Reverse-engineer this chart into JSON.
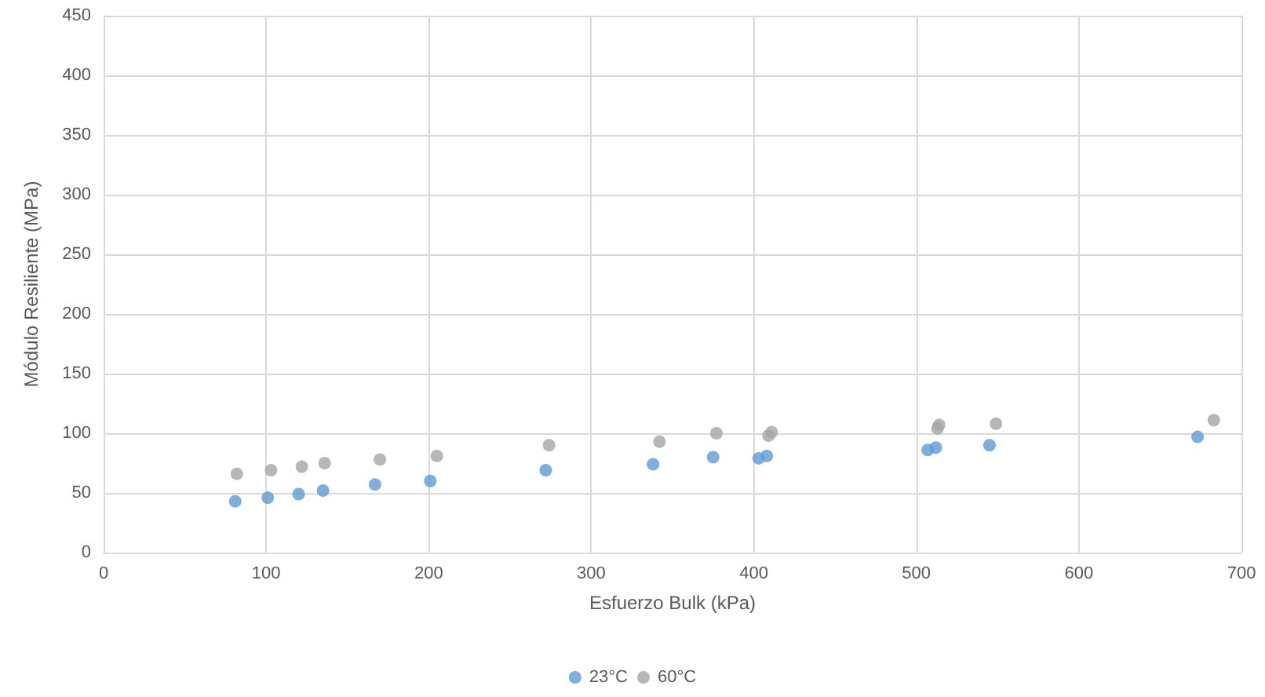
{
  "chart_data": {
    "type": "scatter",
    "xlabel": "Esfuerzo Bulk (kPa)",
    "ylabel": "Módulo Resiliente (MPa)",
    "series": [
      {
        "name": "23°C",
        "color": "#5b9bd5",
        "x": [
          81,
          101,
          120,
          135,
          167,
          201,
          272,
          338,
          375,
          403,
          408,
          507,
          512,
          545,
          673
        ],
        "values": [
          43,
          46,
          49,
          52,
          57,
          60,
          69,
          74,
          80,
          79,
          81,
          86,
          88,
          90,
          97
        ]
      },
      {
        "name": "60°C",
        "color": "#a5a5a5",
        "x": [
          82,
          103,
          122,
          136,
          170,
          205,
          274,
          342,
          377,
          409,
          411,
          513,
          514,
          549,
          683
        ],
        "values": [
          66,
          69,
          72,
          75,
          78,
          81,
          90,
          93,
          100,
          98,
          101,
          104,
          107,
          108,
          111
        ]
      }
    ],
    "xlim": [
      0,
      700
    ],
    "xticks": [
      0,
      100,
      200,
      300,
      400,
      500,
      600,
      700
    ],
    "ylim": [
      0,
      450
    ],
    "yticks": [
      0,
      50,
      100,
      150,
      200,
      250,
      300,
      350,
      400,
      450
    ],
    "grid": true,
    "legend": "bottom",
    "marker": "circle"
  }
}
